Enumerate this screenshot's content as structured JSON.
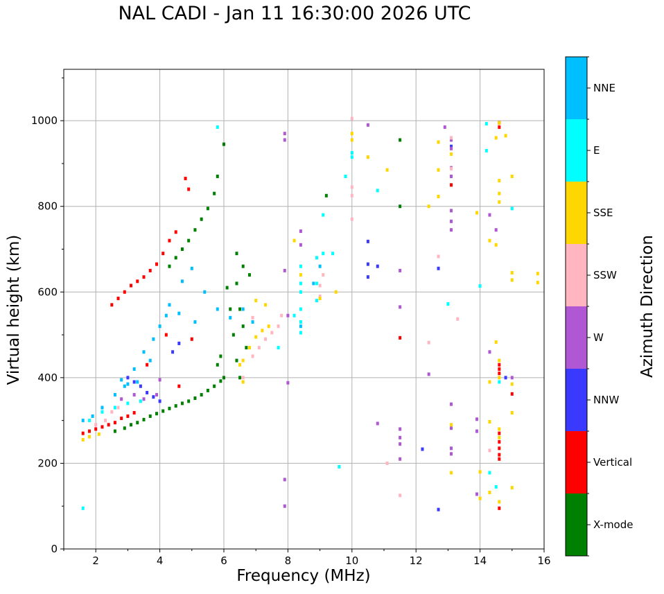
{
  "chart_data": {
    "type": "scatter",
    "title": "NAL CADI - Jan 11 16:30:00 2026 UTC",
    "xlabel": "Frequency (MHz)",
    "ylabel": "Virtual height (km)",
    "xlim": [
      1,
      16
    ],
    "ylim": [
      0,
      1120
    ],
    "xticks": [
      2,
      4,
      6,
      8,
      10,
      12,
      14,
      16
    ],
    "yticks": [
      0,
      200,
      400,
      600,
      800,
      1000
    ],
    "grid": true,
    "colorbar_label": "Azimuth Direction",
    "categories": [
      "X-mode",
      "Vertical",
      "NNW",
      "W",
      "SSW",
      "SSE",
      "E",
      "NNE"
    ],
    "colors": {
      "X-mode": "#008000",
      "Vertical": "#ff0000",
      "NNW": "#3a3aff",
      "W": "#b057d4",
      "SSW": "#ffb6c1",
      "SSE": "#ffd700",
      "E": "#00ffff",
      "NNE": "#00bfff"
    },
    "series": [
      {
        "name": "X-mode",
        "points": [
          [
            2.6,
            275
          ],
          [
            2.9,
            282
          ],
          [
            3.1,
            290
          ],
          [
            3.3,
            295
          ],
          [
            3.5,
            302
          ],
          [
            3.7,
            310
          ],
          [
            3.9,
            316
          ],
          [
            4.1,
            322
          ],
          [
            4.3,
            328
          ],
          [
            4.5,
            334
          ],
          [
            4.7,
            340
          ],
          [
            4.9,
            345
          ],
          [
            5.1,
            352
          ],
          [
            5.3,
            360
          ],
          [
            5.5,
            370
          ],
          [
            5.7,
            380
          ],
          [
            5.9,
            392
          ],
          [
            6.0,
            400
          ],
          [
            4.3,
            660
          ],
          [
            4.5,
            680
          ],
          [
            4.7,
            700
          ],
          [
            4.9,
            720
          ],
          [
            5.1,
            745
          ],
          [
            5.3,
            770
          ],
          [
            5.5,
            795
          ],
          [
            5.7,
            830
          ],
          [
            5.8,
            870
          ],
          [
            6.0,
            945
          ],
          [
            6.4,
            690
          ],
          [
            6.6,
            660
          ],
          [
            6.8,
            640
          ],
          [
            6.4,
            620
          ],
          [
            6.5,
            560
          ],
          [
            6.6,
            520
          ],
          [
            6.7,
            470
          ],
          [
            6.4,
            440
          ],
          [
            6.3,
            500
          ],
          [
            6.2,
            560
          ],
          [
            5.9,
            450
          ],
          [
            5.8,
            430
          ],
          [
            6.5,
            400
          ],
          [
            6.1,
            610
          ],
          [
            11.5,
            955
          ],
          [
            9.2,
            825
          ],
          [
            11.5,
            800
          ]
        ]
      },
      {
        "name": "Vertical",
        "points": [
          [
            1.6,
            270
          ],
          [
            1.8,
            275
          ],
          [
            2.0,
            280
          ],
          [
            2.2,
            285
          ],
          [
            2.4,
            290
          ],
          [
            2.6,
            295
          ],
          [
            2.8,
            305
          ],
          [
            3.0,
            310
          ],
          [
            3.2,
            318
          ],
          [
            2.5,
            570
          ],
          [
            2.7,
            585
          ],
          [
            2.9,
            600
          ],
          [
            3.1,
            615
          ],
          [
            3.3,
            625
          ],
          [
            3.5,
            635
          ],
          [
            3.7,
            650
          ],
          [
            3.9,
            665
          ],
          [
            4.1,
            690
          ],
          [
            4.3,
            720
          ],
          [
            4.5,
            740
          ],
          [
            4.8,
            865
          ],
          [
            4.9,
            840
          ],
          [
            5.0,
            490
          ],
          [
            4.2,
            500
          ],
          [
            3.6,
            430
          ],
          [
            4.6,
            380
          ],
          [
            14.6,
            995
          ],
          [
            14.6,
            985
          ],
          [
            14.6,
            420
          ],
          [
            14.6,
            430
          ],
          [
            14.6,
            410
          ],
          [
            14.6,
            270
          ],
          [
            14.6,
            250
          ],
          [
            14.6,
            235
          ],
          [
            14.6,
            220
          ],
          [
            14.6,
            210
          ],
          [
            14.6,
            95
          ],
          [
            15.0,
            362
          ],
          [
            13.1,
            850
          ],
          [
            11.5,
            493
          ]
        ]
      },
      {
        "name": "NNW",
        "points": [
          [
            3.0,
            400
          ],
          [
            3.2,
            390
          ],
          [
            3.4,
            380
          ],
          [
            3.6,
            365
          ],
          [
            3.8,
            355
          ],
          [
            4.0,
            345
          ],
          [
            4.4,
            460
          ],
          [
            4.6,
            480
          ],
          [
            10.5,
            718
          ],
          [
            10.5,
            665
          ],
          [
            10.5,
            635
          ],
          [
            10.8,
            660
          ],
          [
            12.7,
            655
          ],
          [
            12.7,
            92
          ],
          [
            12.2,
            233
          ],
          [
            13.1,
            940
          ],
          [
            14.8,
            400
          ]
        ]
      },
      {
        "name": "W",
        "points": [
          [
            2.8,
            350
          ],
          [
            3.2,
            360
          ],
          [
            3.5,
            350
          ],
          [
            3.9,
            360
          ],
          [
            4.0,
            395
          ],
          [
            7.9,
            970
          ],
          [
            7.9,
            955
          ],
          [
            8.4,
            742
          ],
          [
            8.4,
            710
          ],
          [
            10.5,
            990
          ],
          [
            12.9,
            985
          ],
          [
            13.1,
            955
          ],
          [
            13.1,
            935
          ],
          [
            13.1,
            890
          ],
          [
            13.1,
            870
          ],
          [
            13.1,
            790
          ],
          [
            13.1,
            765
          ],
          [
            13.1,
            745
          ],
          [
            13.1,
            338
          ],
          [
            13.1,
            282
          ],
          [
            13.1,
            235
          ],
          [
            14.3,
            780
          ],
          [
            14.5,
            745
          ],
          [
            14.3,
            460
          ],
          [
            13.9,
            303
          ],
          [
            13.9,
            275
          ],
          [
            13.9,
            128
          ],
          [
            10.8,
            293
          ],
          [
            11.5,
            650
          ],
          [
            11.5,
            565
          ],
          [
            11.5,
            280
          ],
          [
            11.5,
            260
          ],
          [
            11.5,
            245
          ],
          [
            11.5,
            210
          ],
          [
            7.9,
            650
          ],
          [
            8.0,
            545
          ],
          [
            8.0,
            388
          ],
          [
            7.9,
            162
          ],
          [
            7.9,
            100
          ],
          [
            12.4,
            408
          ],
          [
            13.1,
            222
          ],
          [
            15.0,
            400
          ]
        ]
      },
      {
        "name": "SSW",
        "points": [
          [
            2.0,
            290
          ],
          [
            2.3,
            300
          ],
          [
            2.5,
            320
          ],
          [
            2.7,
            330
          ],
          [
            6.6,
            400
          ],
          [
            6.9,
            450
          ],
          [
            7.1,
            470
          ],
          [
            7.3,
            490
          ],
          [
            7.5,
            505
          ],
          [
            7.7,
            520
          ],
          [
            7.8,
            545
          ],
          [
            9.0,
            615
          ],
          [
            9.1,
            640
          ],
          [
            9.0,
            590
          ],
          [
            10.0,
            1005
          ],
          [
            10.0,
            925
          ],
          [
            10.0,
            845
          ],
          [
            10.0,
            825
          ],
          [
            10.0,
            770
          ],
          [
            12.4,
            482
          ],
          [
            12.7,
            683
          ],
          [
            13.1,
            888
          ],
          [
            13.1,
            960
          ],
          [
            14.3,
            230
          ],
          [
            11.5,
            125
          ],
          [
            11.1,
            200
          ],
          [
            13.3,
            537
          ],
          [
            6.9,
            540
          ]
        ]
      },
      {
        "name": "SSE",
        "points": [
          [
            1.6,
            255
          ],
          [
            1.8,
            262
          ],
          [
            2.1,
            268
          ],
          [
            6.6,
            440
          ],
          [
            6.8,
            470
          ],
          [
            7.0,
            495
          ],
          [
            7.2,
            510
          ],
          [
            7.4,
            520
          ],
          [
            7.0,
            580
          ],
          [
            8.2,
            720
          ],
          [
            8.4,
            640
          ],
          [
            9.0,
            585
          ],
          [
            9.5,
            600
          ],
          [
            10.0,
            970
          ],
          [
            10.0,
            955
          ],
          [
            10.5,
            915
          ],
          [
            11.1,
            885
          ],
          [
            12.4,
            800
          ],
          [
            12.7,
            950
          ],
          [
            12.7,
            885
          ],
          [
            12.7,
            823
          ],
          [
            13.1,
            922
          ],
          [
            13.1,
            290
          ],
          [
            13.1,
            178
          ],
          [
            13.9,
            785
          ],
          [
            14.3,
            720
          ],
          [
            14.5,
            710
          ],
          [
            14.5,
            483
          ],
          [
            14.3,
            390
          ],
          [
            14.3,
            297
          ],
          [
            14.3,
            132
          ],
          [
            14.6,
            995
          ],
          [
            14.5,
            960
          ],
          [
            14.8,
            965
          ],
          [
            14.6,
            860
          ],
          [
            14.6,
            830
          ],
          [
            14.6,
            810
          ],
          [
            15.0,
            870
          ],
          [
            15.0,
            645
          ],
          [
            15.0,
            628
          ],
          [
            15.0,
            385
          ],
          [
            15.0,
            318
          ],
          [
            15.0,
            143
          ],
          [
            14.6,
            110
          ],
          [
            14.6,
            440
          ],
          [
            14.6,
            400
          ],
          [
            14.6,
            280
          ],
          [
            14.6,
            260
          ],
          [
            15.8,
            643
          ],
          [
            15.8,
            622
          ],
          [
            14.0,
            180
          ],
          [
            14.0,
            118
          ],
          [
            6.6,
            390
          ],
          [
            6.5,
            430
          ],
          [
            7.3,
            570
          ]
        ]
      },
      {
        "name": "E",
        "points": [
          [
            1.6,
            95
          ],
          [
            1.8,
            300
          ],
          [
            2.2,
            320
          ],
          [
            2.6,
            330
          ],
          [
            3.0,
            340
          ],
          [
            3.4,
            345
          ],
          [
            8.4,
            530
          ],
          [
            8.4,
            505
          ],
          [
            8.4,
            560
          ],
          [
            8.4,
            600
          ],
          [
            8.4,
            620
          ],
          [
            8.4,
            660
          ],
          [
            8.9,
            680
          ],
          [
            8.9,
            620
          ],
          [
            8.9,
            580
          ],
          [
            9.1,
            690
          ],
          [
            9.1,
            780
          ],
          [
            9.4,
            690
          ],
          [
            9.8,
            870
          ],
          [
            10.0,
            925
          ],
          [
            10.0,
            915
          ],
          [
            10.8,
            837
          ],
          [
            13.0,
            572
          ],
          [
            14.0,
            614
          ],
          [
            14.2,
            993
          ],
          [
            14.2,
            930
          ],
          [
            14.3,
            178
          ],
          [
            14.5,
            145
          ],
          [
            14.6,
            390
          ],
          [
            15.0,
            795
          ],
          [
            9.6,
            192
          ],
          [
            5.8,
            985
          ],
          [
            8.2,
            545
          ],
          [
            7.7,
            470
          ]
        ]
      },
      {
        "name": "NNE",
        "points": [
          [
            1.6,
            300
          ],
          [
            1.9,
            310
          ],
          [
            2.2,
            330
          ],
          [
            2.6,
            360
          ],
          [
            2.9,
            380
          ],
          [
            3.2,
            420
          ],
          [
            3.5,
            460
          ],
          [
            3.8,
            490
          ],
          [
            4.0,
            520
          ],
          [
            4.3,
            570
          ],
          [
            4.7,
            625
          ],
          [
            5.0,
            655
          ],
          [
            5.4,
            600
          ],
          [
            5.8,
            560
          ],
          [
            6.2,
            540
          ],
          [
            6.6,
            560
          ],
          [
            6.9,
            530
          ],
          [
            5.1,
            530
          ],
          [
            4.6,
            550
          ],
          [
            4.2,
            545
          ],
          [
            3.7,
            440
          ],
          [
            3.3,
            390
          ],
          [
            3.0,
            385
          ],
          [
            2.8,
            395
          ],
          [
            8.4,
            520
          ],
          [
            8.8,
            620
          ],
          [
            9.0,
            660
          ]
        ]
      }
    ]
  }
}
